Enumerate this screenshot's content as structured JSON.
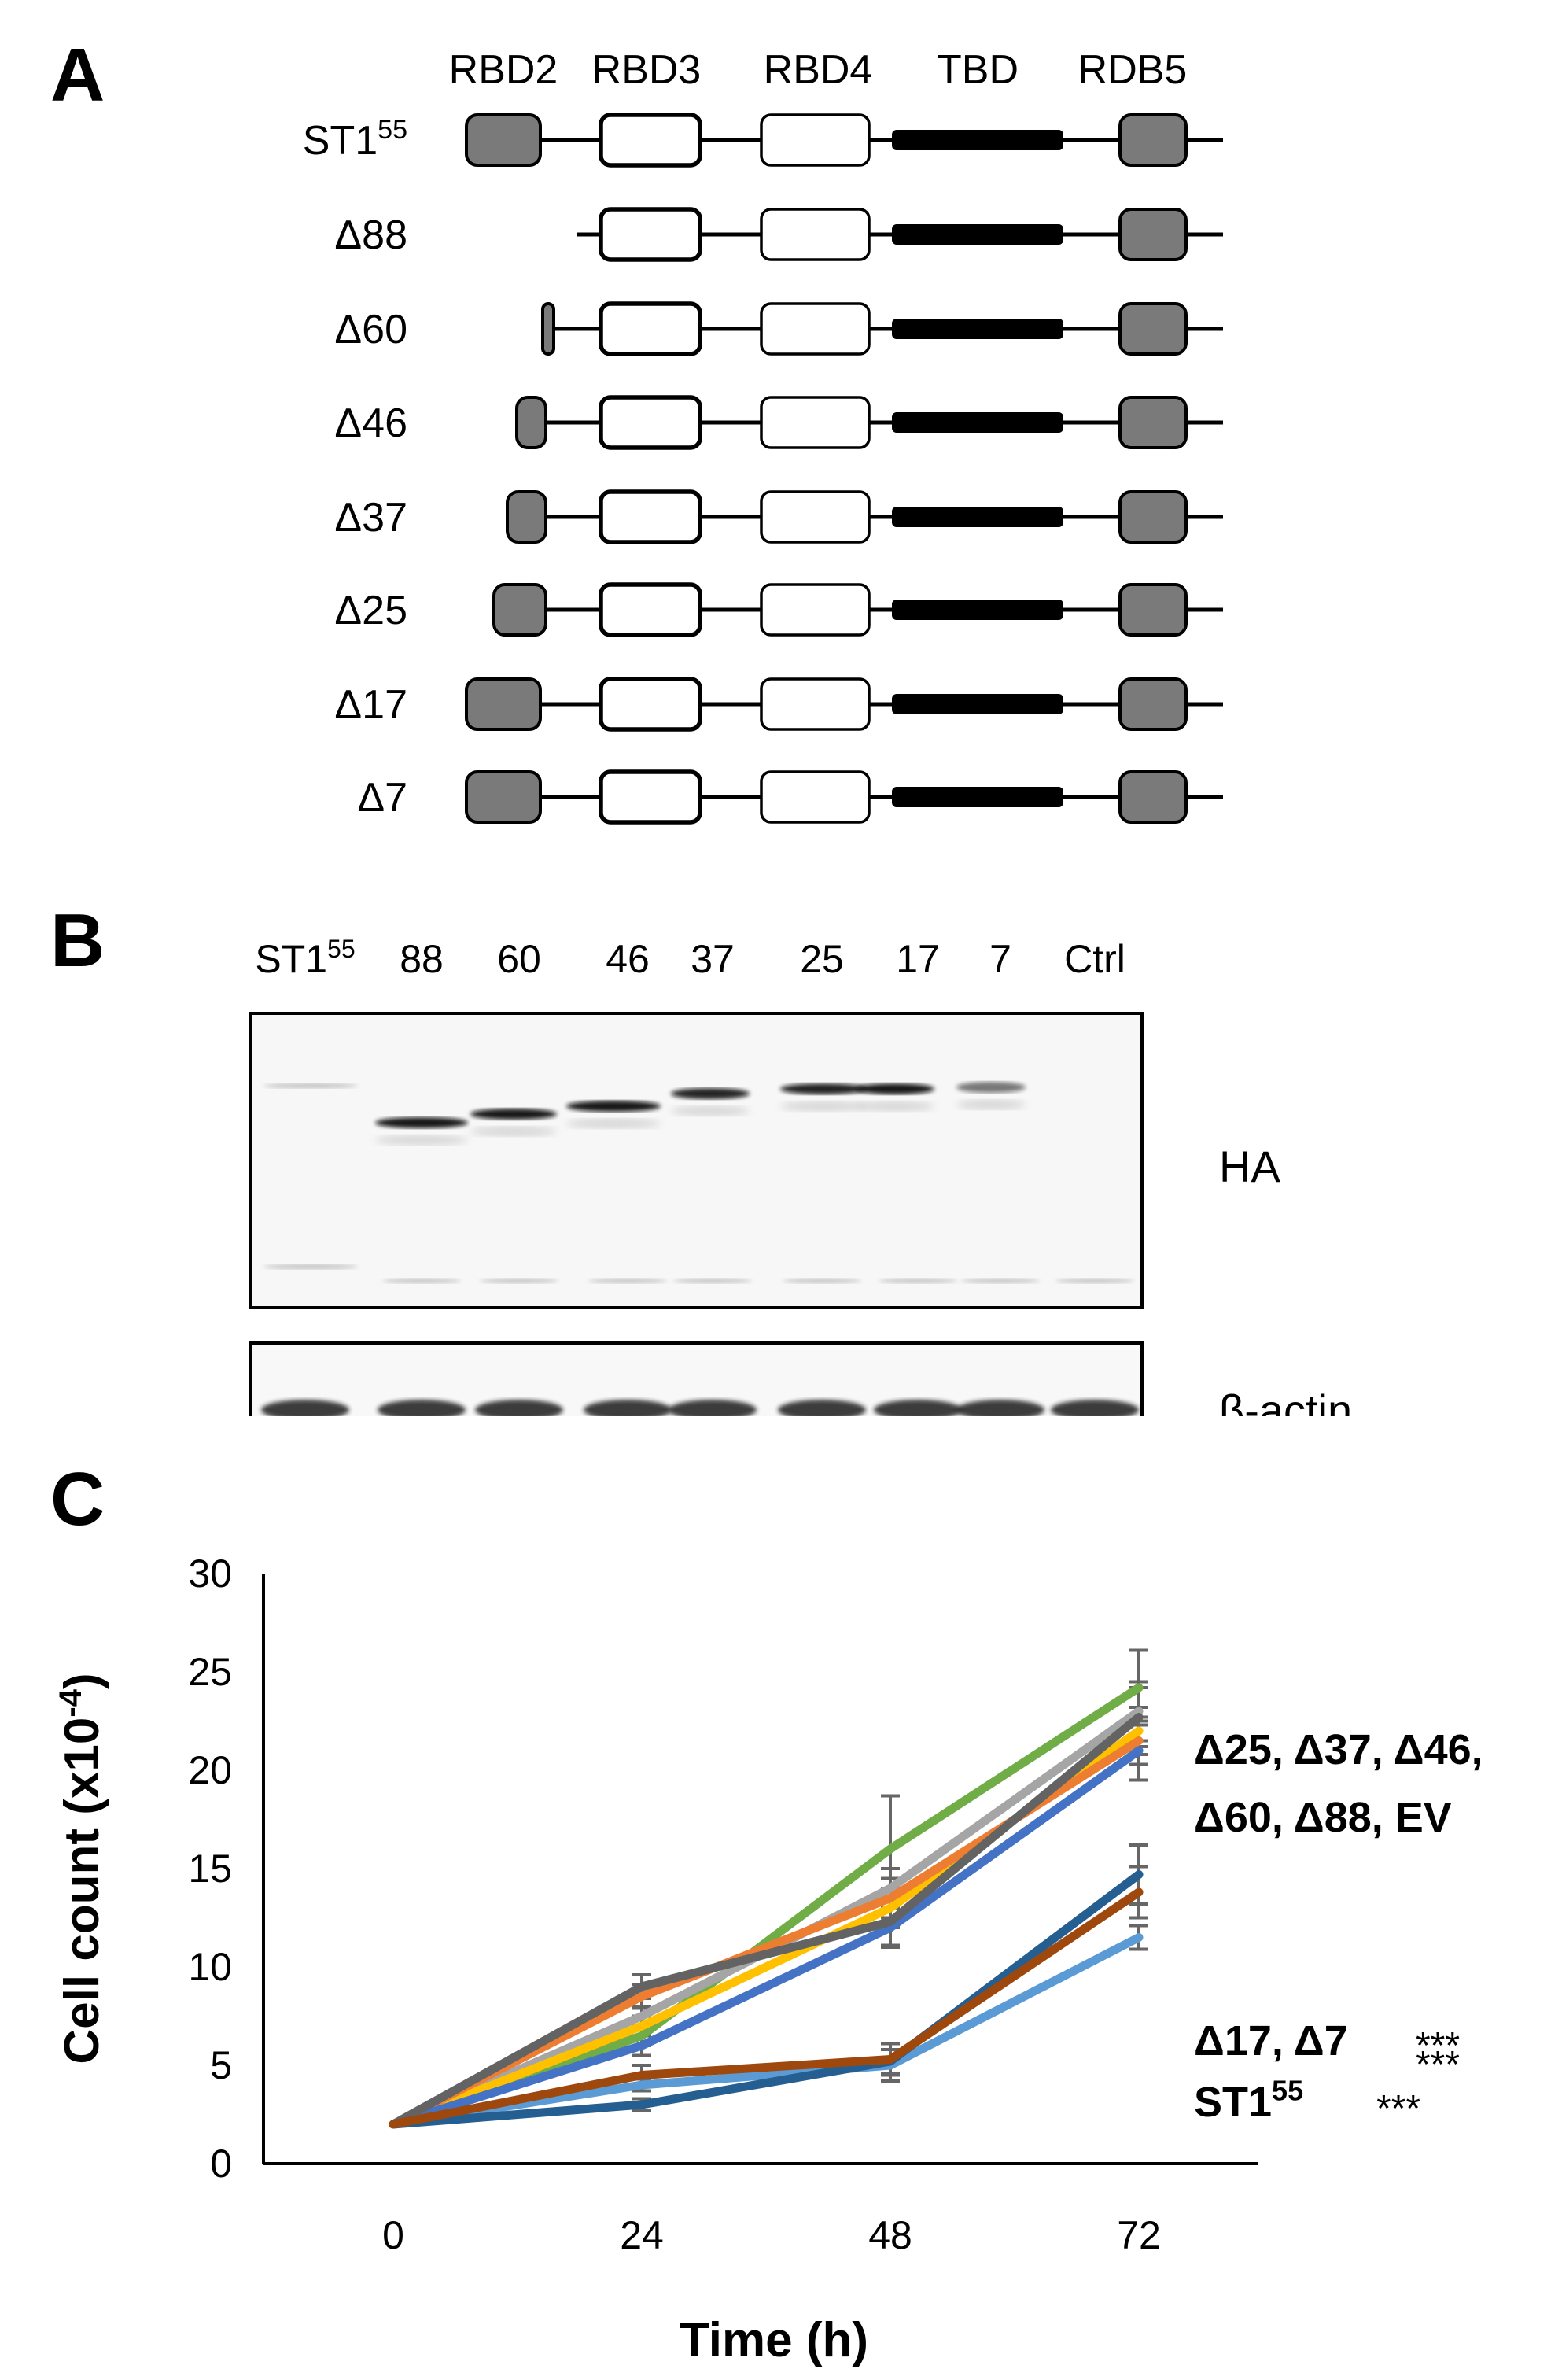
{
  "panels": {
    "a": "A",
    "b": "B",
    "c": "C"
  },
  "panel_a": {
    "domain_headers": [
      "RBD2",
      "RBD3",
      "RBD4",
      "TBD",
      "RDB5"
    ],
    "constructs": [
      {
        "name": "ST1",
        "sup": "55",
        "rbd2": "full",
        "line_start": "long"
      },
      {
        "name": "Δ88",
        "sup": "",
        "rbd2": "none",
        "line_start": "rbd3"
      },
      {
        "name": "Δ60",
        "sup": "",
        "rbd2": "sliver",
        "line_start": "rbd2"
      },
      {
        "name": "Δ46",
        "sup": "",
        "rbd2": "small",
        "line_start": "rbd2"
      },
      {
        "name": "Δ37",
        "sup": "",
        "rbd2": "medium",
        "line_start": "rbd2"
      },
      {
        "name": "Δ25",
        "sup": "",
        "rbd2": "large",
        "line_start": "rbd2"
      },
      {
        "name": "Δ17",
        "sup": "",
        "rbd2": "full",
        "line_start": "short"
      },
      {
        "name": "Δ7",
        "sup": "",
        "rbd2": "full",
        "line_start": "long"
      }
    ],
    "colors": {
      "rbd2": "#7a7a7a",
      "rbd3": "#ffffff",
      "rbd4": "#ffffff",
      "tbd": "#000000",
      "rdb5": "#7a7a7a"
    }
  },
  "panel_b": {
    "lane_labels": [
      {
        "text": "ST1",
        "sup": "55"
      },
      {
        "text": "88",
        "sup": ""
      },
      {
        "text": "60",
        "sup": ""
      },
      {
        "text": "46",
        "sup": ""
      },
      {
        "text": "37",
        "sup": ""
      },
      {
        "text": "25",
        "sup": ""
      },
      {
        "text": "17",
        "sup": ""
      },
      {
        "text": "7",
        "sup": ""
      },
      {
        "text": "Ctrl",
        "sup": ""
      }
    ],
    "blot_labels": {
      "ha": "HA",
      "actin": "β-actin"
    },
    "ha_band_intensity": [
      0.25,
      0.95,
      0.95,
      0.95,
      0.9,
      0.9,
      0.95,
      0.55,
      0.0
    ]
  },
  "chart_data": {
    "type": "line",
    "xlabel": "Time (h)",
    "ylabel": "Cell count (x10",
    "ylabel_sup": "-4",
    "ylabel_close": ")",
    "x": [
      0,
      24,
      48,
      72
    ],
    "x_tick_labels": [
      "0",
      "24",
      "48",
      "72"
    ],
    "ylim": [
      0,
      30
    ],
    "y_ticks": [
      0,
      5,
      10,
      15,
      20,
      25,
      30
    ],
    "grid": false,
    "series": [
      {
        "color": "#70ad47",
        "values": [
          2.0,
          6.5,
          16.0,
          24.2
        ],
        "error": [
          0,
          0.5,
          2.7,
          1.9
        ]
      },
      {
        "color": "#a5a5a5",
        "values": [
          2.0,
          7.5,
          14.0,
          23.0
        ],
        "error": [
          0,
          0.5,
          1.0,
          1.5
        ]
      },
      {
        "color": "#ffc000",
        "values": [
          2.0,
          7.0,
          13.0,
          22.0
        ],
        "error": [
          0,
          0.5,
          1.0,
          1.2
        ]
      },
      {
        "color": "#ed7d31",
        "values": [
          2.0,
          8.5,
          13.5,
          21.5
        ],
        "error": [
          0,
          0.6,
          1.0,
          1.2
        ]
      },
      {
        "color": "#4472c4",
        "values": [
          2.0,
          6.0,
          12.0,
          21.0
        ],
        "error": [
          0,
          0.5,
          1.0,
          1.5
        ]
      },
      {
        "color": "#636363",
        "values": [
          2.0,
          9.0,
          12.3,
          22.7
        ],
        "error": [
          0,
          0.6,
          1.2,
          1.5
        ]
      },
      {
        "color": "#5b9bd5",
        "values": [
          2.0,
          4.0,
          5.0,
          11.5
        ],
        "error": [
          0,
          0.3,
          0.8,
          0.6
        ]
      },
      {
        "color": "#255e91",
        "values": [
          2.0,
          3.0,
          5.2,
          14.7
        ],
        "error": [
          0,
          0.3,
          0.6,
          1.5
        ]
      },
      {
        "color": "#9e480e",
        "values": [
          2.0,
          4.5,
          5.3,
          13.8
        ],
        "error": [
          0,
          0.5,
          0.8,
          1.3
        ]
      }
    ],
    "annotations": {
      "group1_line1": "Δ25, Δ37, Δ46,",
      "group1_line2": "Δ60, Δ88, EV",
      "group2_label": "Δ17, Δ7",
      "group2_stars": "***\n***",
      "group3_label": "ST1",
      "group3_sup": "55",
      "group3_stars": "***"
    }
  }
}
